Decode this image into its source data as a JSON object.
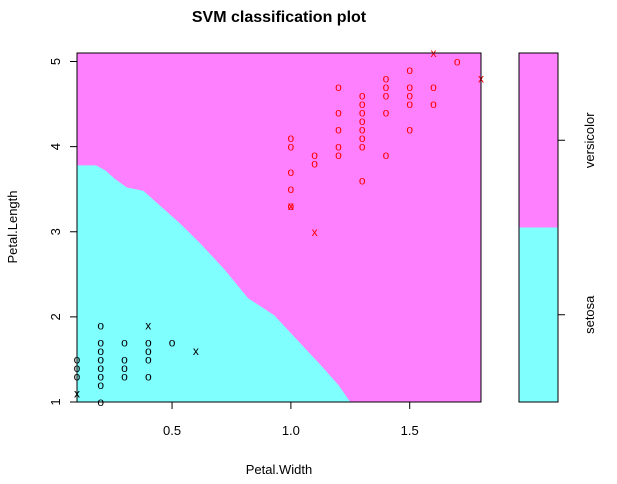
{
  "chart_data": {
    "type": "scatter",
    "title": "SVM classification plot",
    "xlabel": "Petal.Width",
    "ylabel": "Petal.Length",
    "xlim": [
      0.1,
      1.8
    ],
    "ylim": [
      1.0,
      5.1
    ],
    "x_ticks": [
      {
        "value": 0.5,
        "label": "0.5"
      },
      {
        "value": 1.0,
        "label": "1.0"
      },
      {
        "value": 1.5,
        "label": "1.5"
      }
    ],
    "y_ticks": [
      {
        "value": 1,
        "label": "1"
      },
      {
        "value": 2,
        "label": "2"
      },
      {
        "value": 3,
        "label": "3"
      },
      {
        "value": 4,
        "label": "4"
      },
      {
        "value": 5,
        "label": "5"
      }
    ],
    "grid": false,
    "colors": {
      "setosa_region": "#80ffff",
      "versicolor_region": "#ff80ff",
      "setosa_points": "#000000",
      "versicolor_points": "#ff0000"
    },
    "decision_boundary": [
      [
        0.1,
        3.78
      ],
      [
        0.18,
        3.78
      ],
      [
        0.22,
        3.72
      ],
      [
        0.26,
        3.62
      ],
      [
        0.31,
        3.52
      ],
      [
        0.38,
        3.48
      ],
      [
        0.42,
        3.38
      ],
      [
        0.46,
        3.28
      ],
      [
        0.54,
        3.08
      ],
      [
        0.62,
        2.86
      ],
      [
        0.72,
        2.56
      ],
      [
        0.82,
        2.22
      ],
      [
        0.93,
        2.02
      ],
      [
        1.03,
        1.72
      ],
      [
        1.13,
        1.42
      ],
      [
        1.2,
        1.2
      ],
      [
        1.25,
        1.0
      ]
    ],
    "legend": {
      "position": "right",
      "entries": [
        {
          "label": "setosa",
          "range": [
            1.0,
            3.05
          ],
          "color": "#80ffff"
        },
        {
          "label": "versicolor",
          "range": [
            3.05,
            5.1
          ],
          "color": "#ff80ff"
        }
      ]
    },
    "series": [
      {
        "name": "setosa",
        "color": "#000000",
        "points": [
          {
            "x": 0.1,
            "y": 1.5,
            "m": "o"
          },
          {
            "x": 0.1,
            "y": 1.4,
            "m": "o"
          },
          {
            "x": 0.1,
            "y": 1.3,
            "m": "o"
          },
          {
            "x": 0.1,
            "y": 1.1,
            "m": "x"
          },
          {
            "x": 0.2,
            "y": 1.9,
            "m": "o"
          },
          {
            "x": 0.2,
            "y": 1.7,
            "m": "o"
          },
          {
            "x": 0.2,
            "y": 1.6,
            "m": "o"
          },
          {
            "x": 0.2,
            "y": 1.5,
            "m": "o"
          },
          {
            "x": 0.2,
            "y": 1.4,
            "m": "o"
          },
          {
            "x": 0.2,
            "y": 1.3,
            "m": "o"
          },
          {
            "x": 0.2,
            "y": 1.2,
            "m": "o"
          },
          {
            "x": 0.2,
            "y": 1.0,
            "m": "o"
          },
          {
            "x": 0.3,
            "y": 1.7,
            "m": "o"
          },
          {
            "x": 0.3,
            "y": 1.5,
            "m": "o"
          },
          {
            "x": 0.3,
            "y": 1.4,
            "m": "o"
          },
          {
            "x": 0.3,
            "y": 1.3,
            "m": "o"
          },
          {
            "x": 0.4,
            "y": 1.9,
            "m": "x"
          },
          {
            "x": 0.4,
            "y": 1.7,
            "m": "o"
          },
          {
            "x": 0.4,
            "y": 1.6,
            "m": "o"
          },
          {
            "x": 0.4,
            "y": 1.5,
            "m": "o"
          },
          {
            "x": 0.4,
            "y": 1.3,
            "m": "o"
          },
          {
            "x": 0.5,
            "y": 1.7,
            "m": "o"
          },
          {
            "x": 0.6,
            "y": 1.6,
            "m": "x"
          }
        ]
      },
      {
        "name": "versicolor",
        "color": "#ff0000",
        "points": [
          {
            "x": 1.0,
            "y": 4.1,
            "m": "o"
          },
          {
            "x": 1.0,
            "y": 4.0,
            "m": "o"
          },
          {
            "x": 1.0,
            "y": 3.7,
            "m": "o"
          },
          {
            "x": 1.0,
            "y": 3.5,
            "m": "o"
          },
          {
            "x": 1.0,
            "y": 3.3,
            "m": "o"
          },
          {
            "x": 1.0,
            "y": 3.3,
            "m": "x"
          },
          {
            "x": 1.1,
            "y": 3.9,
            "m": "o"
          },
          {
            "x": 1.1,
            "y": 3.8,
            "m": "o"
          },
          {
            "x": 1.1,
            "y": 3.0,
            "m": "x"
          },
          {
            "x": 1.2,
            "y": 4.7,
            "m": "o"
          },
          {
            "x": 1.2,
            "y": 4.4,
            "m": "o"
          },
          {
            "x": 1.2,
            "y": 4.2,
            "m": "o"
          },
          {
            "x": 1.2,
            "y": 4.0,
            "m": "o"
          },
          {
            "x": 1.2,
            "y": 3.9,
            "m": "o"
          },
          {
            "x": 1.3,
            "y": 4.6,
            "m": "o"
          },
          {
            "x": 1.3,
            "y": 4.5,
            "m": "o"
          },
          {
            "x": 1.3,
            "y": 4.4,
            "m": "o"
          },
          {
            "x": 1.3,
            "y": 4.3,
            "m": "o"
          },
          {
            "x": 1.3,
            "y": 4.2,
            "m": "o"
          },
          {
            "x": 1.3,
            "y": 4.1,
            "m": "o"
          },
          {
            "x": 1.3,
            "y": 4.0,
            "m": "o"
          },
          {
            "x": 1.3,
            "y": 3.6,
            "m": "o"
          },
          {
            "x": 1.4,
            "y": 4.8,
            "m": "o"
          },
          {
            "x": 1.4,
            "y": 4.7,
            "m": "o"
          },
          {
            "x": 1.4,
            "y": 4.6,
            "m": "o"
          },
          {
            "x": 1.4,
            "y": 4.4,
            "m": "o"
          },
          {
            "x": 1.4,
            "y": 3.9,
            "m": "o"
          },
          {
            "x": 1.5,
            "y": 4.9,
            "m": "o"
          },
          {
            "x": 1.5,
            "y": 4.7,
            "m": "o"
          },
          {
            "x": 1.5,
            "y": 4.6,
            "m": "o"
          },
          {
            "x": 1.5,
            "y": 4.5,
            "m": "o"
          },
          {
            "x": 1.5,
            "y": 4.2,
            "m": "o"
          },
          {
            "x": 1.6,
            "y": 4.7,
            "m": "o"
          },
          {
            "x": 1.6,
            "y": 4.5,
            "m": "o"
          },
          {
            "x": 1.6,
            "y": 5.1,
            "m": "x"
          },
          {
            "x": 1.7,
            "y": 5.0,
            "m": "o"
          },
          {
            "x": 1.8,
            "y": 4.8,
            "m": "x"
          }
        ]
      }
    ]
  }
}
